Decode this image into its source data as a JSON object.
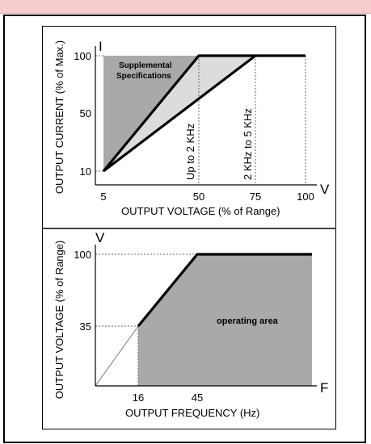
{
  "top_chart": {
    "y_axis_symbol": "I",
    "x_axis_symbol": "V",
    "y_axis_title": "OUTPUT CURRENT (% of Max.)",
    "x_axis_title": "OUTPUT VOLTAGE (% of Range)",
    "y_ticks": [
      "100",
      "50",
      "10"
    ],
    "x_ticks": [
      "5",
      "50",
      "75",
      "100"
    ],
    "region_label_line1": "Supplemental",
    "region_label_line2": "Specifications",
    "curve_label_low": "Up to 2 KHz",
    "curve_label_high": "2 KHz to 5 KHz"
  },
  "bottom_chart": {
    "y_axis_symbol": "V",
    "x_axis_symbol": "F",
    "y_axis_title": "OUTPUT VOLTAGE (% of Range)",
    "x_axis_title": "OUTPUT FREQUENCY (Hz)",
    "y_ticks": [
      "100",
      "35"
    ],
    "x_ticks": [
      "16",
      "45"
    ],
    "region_label": "operating area"
  },
  "colors": {
    "top_bar": "#f6cccf",
    "region_dark": "#a9a9a9",
    "region_light": "#dcdcdc"
  }
}
